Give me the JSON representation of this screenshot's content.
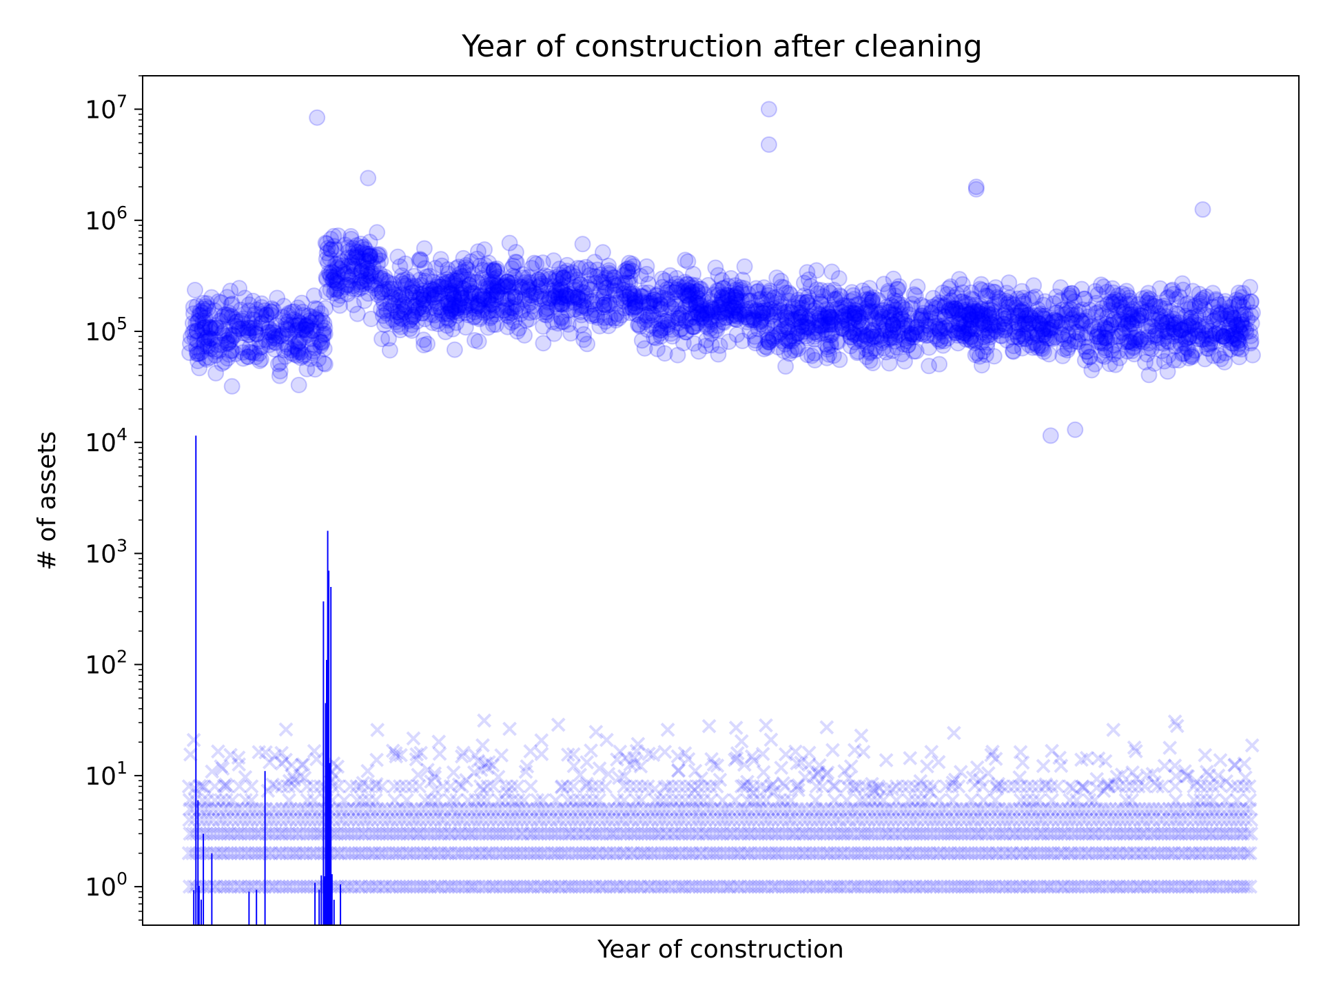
{
  "chart_data": {
    "type": "scatter",
    "title": "Year of construction after cleaning",
    "xlabel": "Year of construction",
    "ylabel": "# of assets",
    "yscale": "log",
    "ylim": [
      0.45,
      20000000
    ],
    "x_tick_labels": [],
    "y_ticks": [
      {
        "base": "10",
        "exp": "0",
        "value": 1
      },
      {
        "base": "10",
        "exp": "1",
        "value": 10
      },
      {
        "base": "10",
        "exp": "2",
        "value": 100
      },
      {
        "base": "10",
        "exp": "3",
        "value": 1000
      },
      {
        "base": "10",
        "exp": "4",
        "value": 10000
      },
      {
        "base": "10",
        "exp": "5",
        "value": 100000
      },
      {
        "base": "10",
        "exp": "6",
        "value": 1000000
      },
      {
        "base": "10",
        "exp": "7",
        "value": 10000000
      }
    ],
    "grid": false,
    "legend": "none",
    "series": [
      {
        "marker": "circle",
        "color": "#0000ff",
        "alpha": 0.15,
        "typical_range": [
          40000,
          400000
        ],
        "segments": [
          {
            "x_range": [
              0.0,
              0.065
            ],
            "median": 100000
          },
          {
            "x_range": [
              0.065,
              0.128
            ],
            "median": 95000
          },
          {
            "x_range": [
              0.128,
              0.18
            ],
            "median": 350000
          },
          {
            "x_range": [
              0.18,
              0.25
            ],
            "median": 200000
          },
          {
            "x_range": [
              0.25,
              0.42
            ],
            "median": 220000
          },
          {
            "x_range": [
              0.42,
              0.53
            ],
            "median": 160000
          },
          {
            "x_range": [
              0.53,
              0.7
            ],
            "median": 125000
          },
          {
            "x_range": [
              0.7,
              0.78
            ],
            "median": 130000
          },
          {
            "x_range": [
              0.78,
              1.0
            ],
            "median": 115000
          }
        ],
        "notable_points": [
          {
            "x": 0.12,
            "y": 8400000
          },
          {
            "x": 0.545,
            "y": 10000000
          },
          {
            "x": 0.545,
            "y": 4800000
          },
          {
            "x": 0.74,
            "y": 2000000
          },
          {
            "x": 0.74,
            "y": 1900000
          },
          {
            "x": 0.168,
            "y": 2400000
          },
          {
            "x": 0.953,
            "y": 1250000
          },
          {
            "x": 0.81,
            "y": 11500
          },
          {
            "x": 0.833,
            "y": 13000
          },
          {
            "x": 0.04,
            "y": 32000
          }
        ]
      },
      {
        "marker": "x",
        "color": "#0000ff",
        "alpha": 0.15,
        "values": [
          1,
          2,
          3,
          4,
          5,
          6,
          8
        ],
        "max_value": 35
      },
      {
        "marker": "vline",
        "color": "#0000ff",
        "spikes": [
          {
            "x": 0.006,
            "y": 11500
          },
          {
            "x": 0.008,
            "y": 6
          },
          {
            "x": 0.013,
            "y": 3
          },
          {
            "x": 0.021,
            "y": 2
          },
          {
            "x": 0.071,
            "y": 11
          },
          {
            "x": 0.126,
            "y": 370
          },
          {
            "x": 0.129,
            "y": 110
          },
          {
            "x": 0.13,
            "y": 1600
          },
          {
            "x": 0.131,
            "y": 700
          },
          {
            "x": 0.133,
            "y": 500
          },
          {
            "x": 0.128,
            "y": 45
          },
          {
            "x": 0.132,
            "y": 13
          }
        ]
      }
    ]
  }
}
